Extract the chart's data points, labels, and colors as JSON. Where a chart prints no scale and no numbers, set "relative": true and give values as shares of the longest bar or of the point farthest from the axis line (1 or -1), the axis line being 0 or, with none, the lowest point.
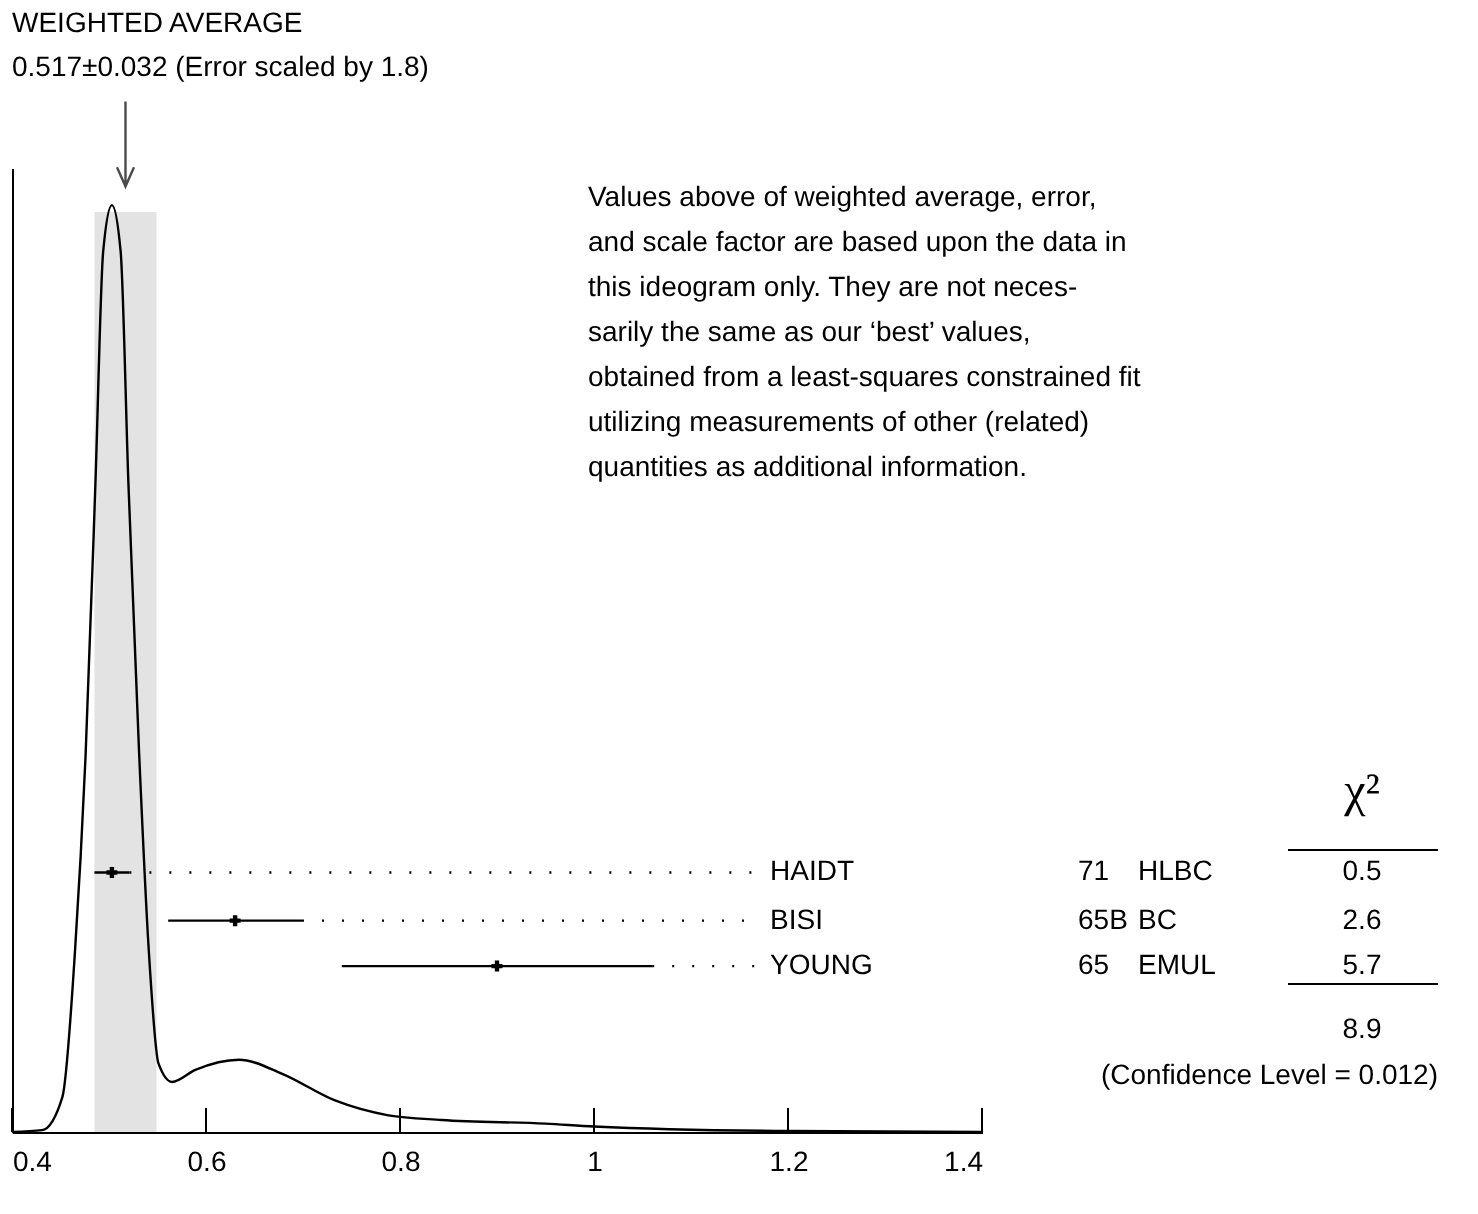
{
  "chart_data": {
    "type": "line",
    "title": "WEIGHTED AVERAGE",
    "relative": true,
    "xlim": [
      0.4,
      1.4
    ],
    "xticks": [
      0.4,
      0.6,
      0.8,
      1,
      1.2,
      1.4
    ],
    "grid": false,
    "line_style": "solid",
    "series": [
      {
        "color": "#000000",
        "x": [
          0.4,
          0.431,
          0.452,
          0.465,
          0.476,
          0.486,
          0.494,
          0.503,
          0.512,
          0.52,
          0.531,
          0.541,
          0.551,
          0.565,
          0.589,
          0.634,
          0.678,
          0.733,
          0.788,
          0.843,
          0.95,
          1.0,
          1.2,
          1.4
        ],
        "values": [
          0,
          0.002,
          0.038,
          0.196,
          0.41,
          0.7,
          0.95,
          1.0,
          0.95,
          0.7,
          0.41,
          0.196,
          0.074,
          0.054,
          0.067,
          0.078,
          0.063,
          0.034,
          0.018,
          0.013,
          0.009,
          0.006,
          0.001,
          0
        ]
      },
      {
        "type": "scatter",
        "color": "#000000",
        "marker": "cross",
        "x": [
          0.503,
          0.63,
          0.9
        ],
        "values": [
          0.28,
          0.228,
          0.179
        ],
        "xerrors": [
          0.018,
          0.069,
          0.16
        ]
      }
    ],
    "bands": [
      {
        "axis": "x",
        "from": 0.485,
        "to": 0.549,
        "color": "#e3e3e3"
      }
    ],
    "annotations": [
      "0.517±0.032 (Error scaled by 1.8)",
      "Values above of weighted average, error,\nand scale factor are based upon the data in\nthis ideogram only.  They are not neces-\nsarily the same as our ‘best’ values,\nobtained from a least-squares constrained fit\nutilizing measurements of other (related)\nquantities as additional information.",
      "HAIDT",
      "71",
      "HLBC",
      "0.5",
      "BISI",
      "65B",
      "BC",
      "2.6",
      "YOUNG",
      "65",
      "EMUL",
      "5.7",
      "χ²",
      "8.9",
      "(Confidence Level = 0.012)"
    ]
  }
}
